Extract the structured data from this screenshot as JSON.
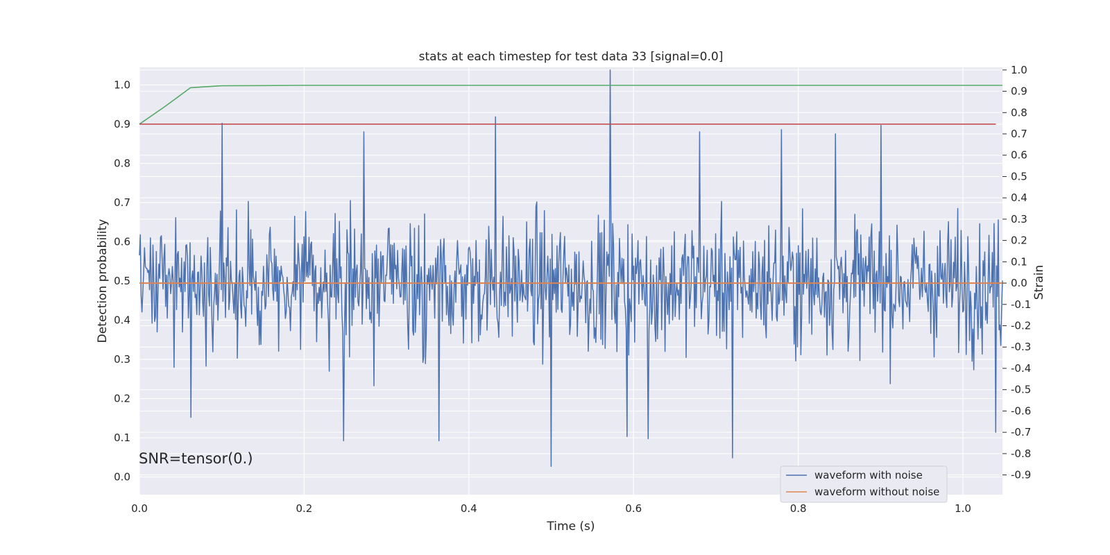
{
  "chart_data": {
    "type": "line",
    "title": "stats at each timestep for test data 33 [signal=0.0]",
    "xlabel": "Time (s)",
    "ylabel": "Detection probability",
    "ylabel_right": "Strain",
    "xlim": [
      0.0,
      1.048
    ],
    "ylim": [
      -0.045,
      1.045
    ],
    "ylim_right": [
      -0.9925,
      1.0125
    ],
    "x_ticks": [
      "0.0",
      "0.2",
      "0.4",
      "0.6",
      "0.8",
      "1.0"
    ],
    "y_ticks": [
      "0.0",
      "0.1",
      "0.2",
      "0.3",
      "0.4",
      "0.5",
      "0.6",
      "0.7",
      "0.8",
      "0.9",
      "1.0"
    ],
    "y_ticks_right": [
      "-0.9",
      "-0.8",
      "-0.7",
      "-0.6",
      "-0.5",
      "-0.4",
      "-0.3",
      "-0.2",
      "-0.1",
      "0.0",
      "0.1",
      "0.2",
      "0.3",
      "0.4",
      "0.5",
      "0.6",
      "0.7",
      "0.8",
      "0.9",
      "1.0"
    ],
    "grid": true,
    "legend_position": "bottom-right",
    "annotation": "SNR=tensor(0.)",
    "series": [
      {
        "name": "waveform with noise",
        "axis": "right",
        "color": "#4c72b0",
        "sample_count": 1024,
        "min": -0.86,
        "max": 1.0,
        "anchor_points": [
          [
            0.0,
            0.13
          ],
          [
            0.062,
            -0.63
          ],
          [
            0.1,
            0.75
          ],
          [
            0.248,
            -0.74
          ],
          [
            0.272,
            0.71
          ],
          [
            0.364,
            -0.74
          ],
          [
            0.432,
            0.78
          ],
          [
            0.5,
            -0.86
          ],
          [
            0.572,
            1.0
          ],
          [
            0.592,
            -0.72
          ],
          [
            0.618,
            -0.73
          ],
          [
            0.68,
            0.71
          ],
          [
            0.72,
            -0.82
          ],
          [
            0.78,
            0.72
          ],
          [
            0.845,
            0.7
          ],
          [
            0.9,
            0.74
          ],
          [
            1.04,
            -0.7
          ]
        ]
      },
      {
        "name": "waveform without noise",
        "axis": "right",
        "color": "#dd8452",
        "x": [
          0.0,
          1.048
        ],
        "y": [
          0.0,
          0.0
        ]
      },
      {
        "axis": "left",
        "color": "#55a868",
        "x": [
          0.0,
          0.031,
          0.062,
          0.1,
          0.2,
          1.048
        ],
        "y": [
          0.9,
          0.945,
          0.993,
          0.998,
          0.999,
          0.999
        ]
      },
      {
        "axis": "left",
        "color": "#c44e52",
        "x": [
          0.0,
          1.04
        ],
        "y": [
          0.9,
          0.9
        ]
      }
    ]
  }
}
